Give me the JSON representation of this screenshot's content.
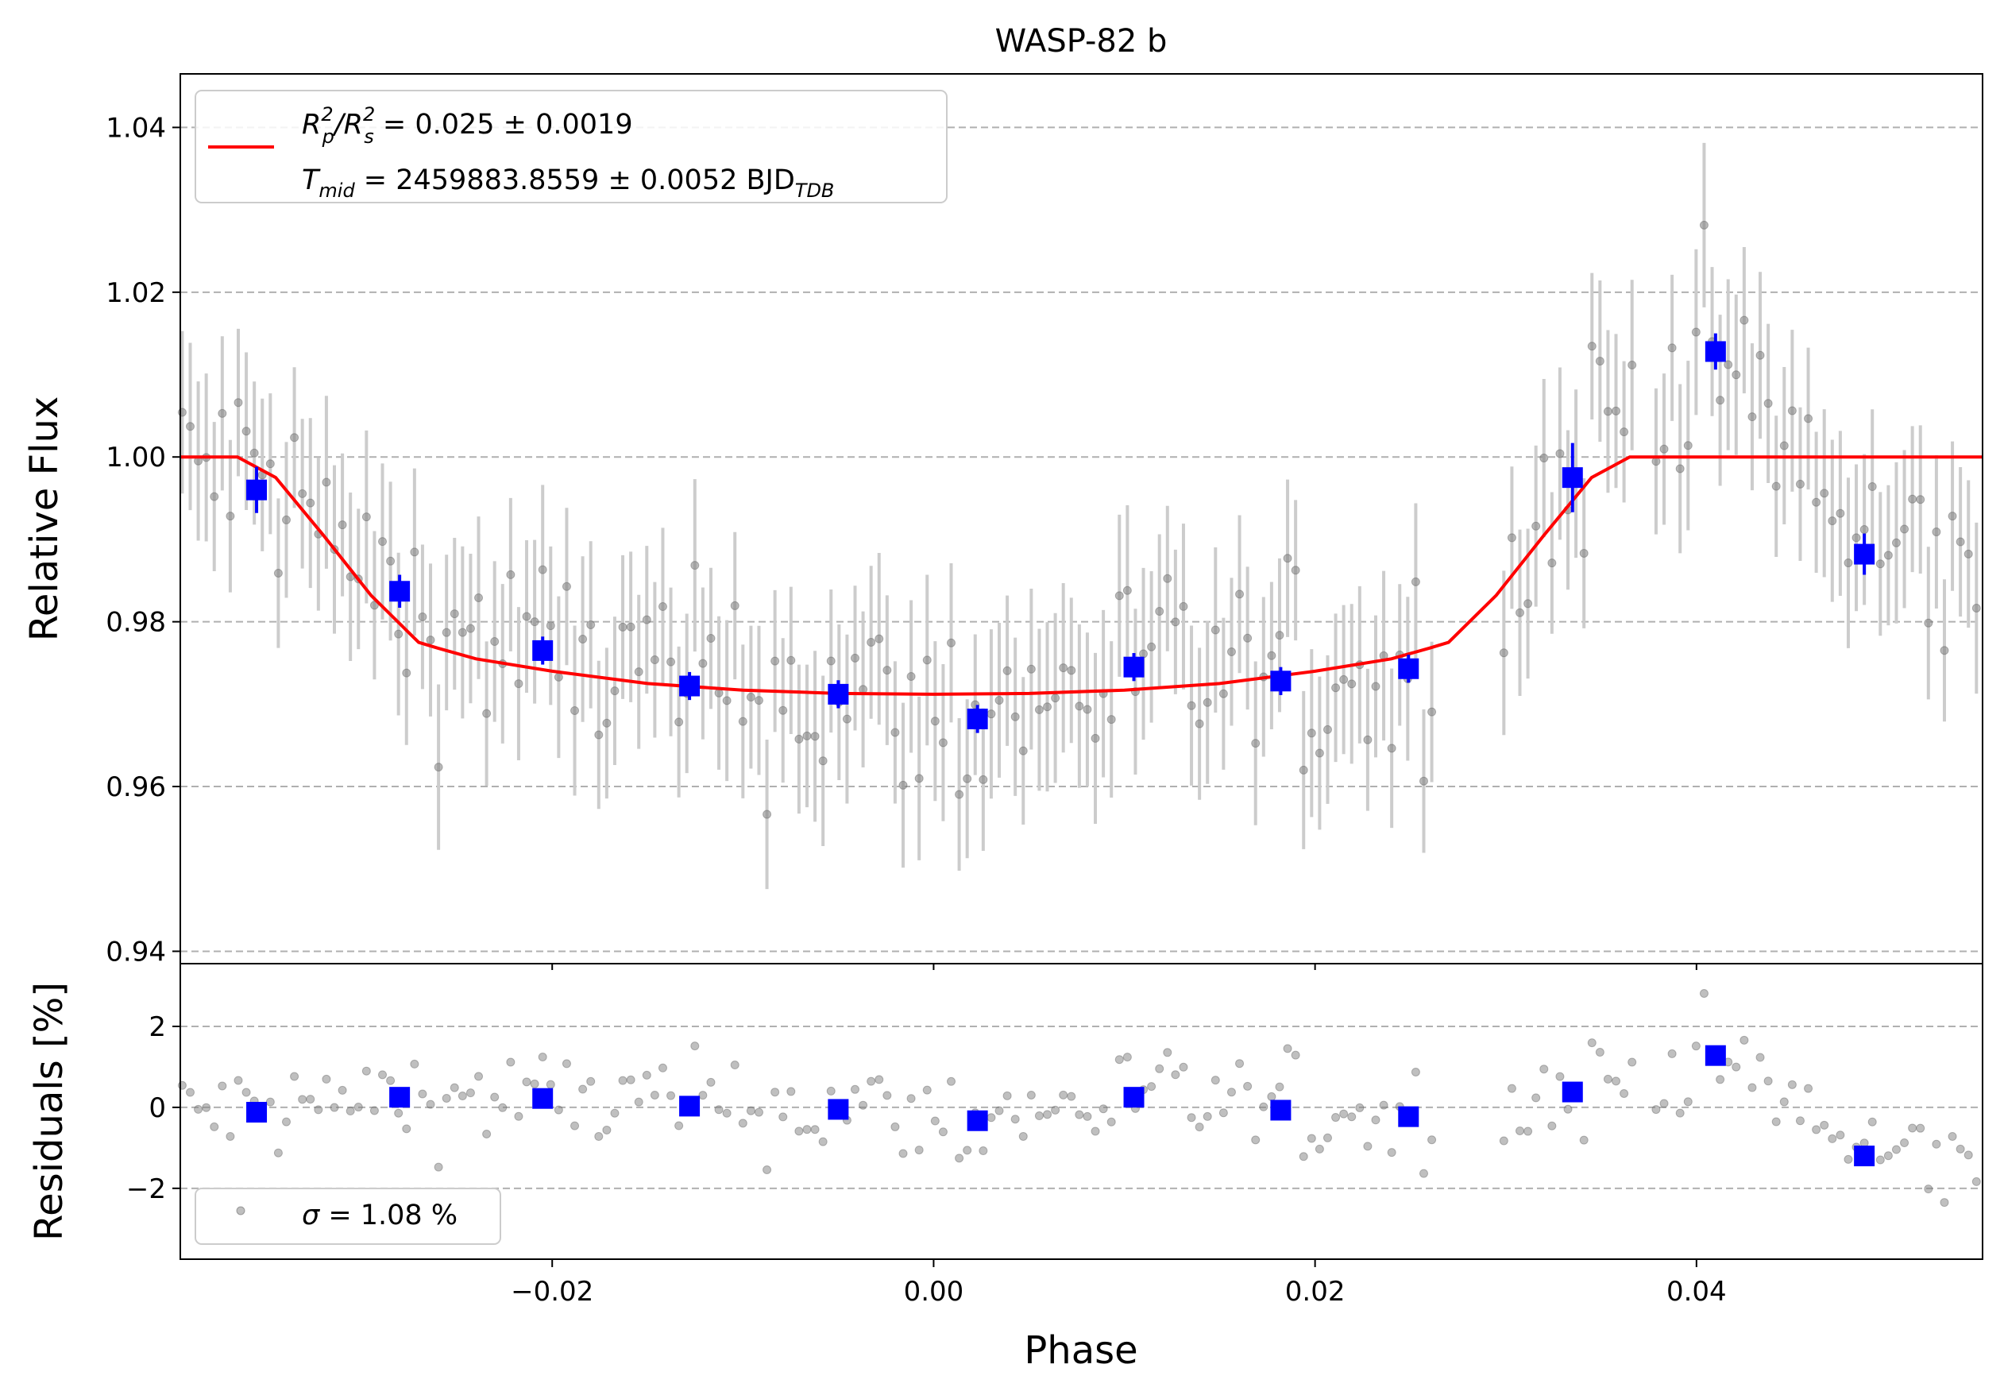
{
  "chart_data": [
    {
      "type": "scatter",
      "title": "WASP-82 b",
      "xlabel": "Phase",
      "ylabel": "Relative Flux",
      "xlim": [
        -0.0395,
        0.055
      ],
      "ylim": [
        0.9385,
        1.0465
      ],
      "xticks": [
        -0.02,
        0.0,
        0.02,
        0.04
      ],
      "xtick_labels": [
        "−0.02",
        "0.00",
        "0.02",
        "0.04"
      ],
      "yticks": [
        0.94,
        0.96,
        0.98,
        1.0,
        1.02,
        1.04
      ],
      "ytick_labels": [
        "0.94",
        "0.96",
        "0.98",
        "1.00",
        "1.02",
        "1.04"
      ],
      "grid": "horizontal-dashed",
      "legend_position": "top-left",
      "legend": {
        "line1": "R_p^2/R_s^2 = 0.025 ± 0.0019",
        "line2": "T_mid = 2459883.8559 ± 0.0052 BJD_TDB",
        "l1_a": "R",
        "l1_a_sub": "p",
        "l1_a_sup": "2",
        "l1_b": "/R",
        "l1_b_sub": "s",
        "l1_b_sup": "2",
        "l1_rest": " = 0.025 ± 0.0019",
        "l2_a": "T",
        "l2_a_sub": "mid",
        "l2_rest": " = 2459883.8559 ± 0.0052 BJD",
        "l2_rest_sub": "TDB"
      },
      "model": {
        "name": "transit model",
        "color": "#ff0000",
        "x": [
          -0.0395,
          -0.0365,
          -0.0345,
          -0.032,
          -0.0295,
          -0.027,
          -0.026,
          -0.024,
          -0.02,
          -0.015,
          -0.01,
          -0.005,
          0.0,
          0.005,
          0.01,
          0.015,
          0.02,
          0.024,
          0.026,
          0.027,
          0.0295,
          0.032,
          0.0345,
          0.0365,
          0.055
        ],
        "y": [
          1.0,
          1.0,
          0.9975,
          0.9905,
          0.9832,
          0.9775,
          0.9768,
          0.9755,
          0.974,
          0.9725,
          0.9717,
          0.9713,
          0.9712,
          0.9713,
          0.9717,
          0.9725,
          0.974,
          0.9755,
          0.9768,
          0.9775,
          0.9832,
          0.9905,
          0.9975,
          1.0,
          1.0
        ]
      },
      "binned": {
        "color": "#0000ff",
        "x": [
          -0.0355,
          -0.028,
          -0.0205,
          -0.0128,
          -0.005,
          0.0023,
          0.0105,
          0.0182,
          0.0249,
          0.0335,
          0.041,
          0.0488
        ],
        "y": [
          0.996,
          0.9837,
          0.9765,
          0.9722,
          0.9712,
          0.9682,
          0.9745,
          0.9728,
          0.9743,
          0.9975,
          1.0128,
          0.9882
        ],
        "err": [
          0.0028,
          0.002,
          0.0017,
          0.0017,
          0.0017,
          0.0017,
          0.0017,
          0.0017,
          0.0017,
          0.0042,
          0.0022,
          0.0025
        ]
      },
      "raw_color": "#808080",
      "raw_err_color": "#cccccc"
    },
    {
      "type": "scatter",
      "xlabel": "Phase",
      "ylabel": "Residuals [%]",
      "xlim": [
        -0.0395,
        0.055
      ],
      "ylim": [
        -3.75,
        3.55
      ],
      "yticks": [
        -2,
        0,
        2
      ],
      "ytick_labels": [
        "−2",
        "0",
        "2"
      ],
      "grid": "horizontal-dashed",
      "legend_position": "bottom-left",
      "legend": {
        "sigma_sym": "σ",
        "sigma_rest": " = 1.08 %"
      },
      "binned": {
        "color": "#0000ff",
        "x": [
          -0.0355,
          -0.028,
          -0.0205,
          -0.0128,
          -0.005,
          0.0023,
          0.0105,
          0.0182,
          0.0249,
          0.0335,
          0.041,
          0.0488
        ],
        "y": [
          -0.12,
          0.25,
          0.22,
          0.03,
          -0.05,
          -0.33,
          0.25,
          -0.07,
          -0.23,
          0.38,
          1.28,
          -1.2
        ]
      }
    }
  ]
}
